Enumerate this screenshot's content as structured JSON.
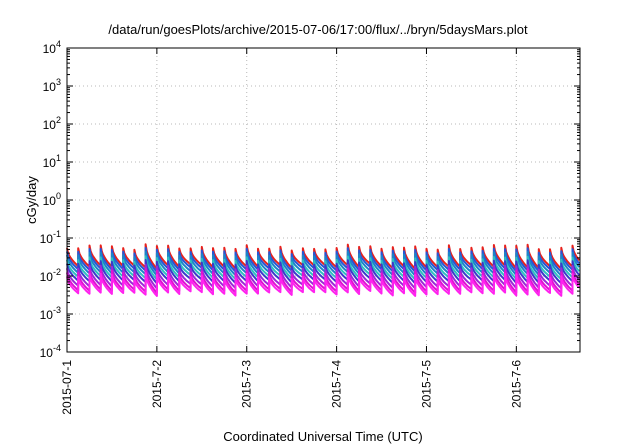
{
  "chart_data": {
    "type": "line",
    "title": "/data/run/goesPlots/archive/2015-07-06/17:00/flux/../bryn/5daysMars.plot",
    "xlabel": "Coordinated Universal Time (UTC)",
    "ylabel": "cGy/day",
    "x_range": [
      "2015-07-01T00:00",
      "2015-07-06T17:00"
    ],
    "x_tick_labels": [
      "2015-07-1",
      "2015-7-2",
      "2015-7-3",
      "2015-7-4",
      "2015-7-5",
      "2015-7-6"
    ],
    "y_scale": "log",
    "ylim": [
      0.0001,
      10000
    ],
    "y_tick_labels": [
      {
        "base": "10",
        "exp": "-4"
      },
      {
        "base": "10",
        "exp": "-3"
      },
      {
        "base": "10",
        "exp": "-2"
      },
      {
        "base": "10",
        "exp": "-1"
      },
      {
        "base": "10",
        "exp": "0"
      },
      {
        "base": "10",
        "exp": "1"
      },
      {
        "base": "10",
        "exp": "2"
      },
      {
        "base": "10",
        "exp": "3"
      },
      {
        "base": "10",
        "exp": "4"
      }
    ],
    "grid": true,
    "legend": "none",
    "sawtooth_period_hours": 3,
    "series": [
      {
        "color": "#e8211c",
        "low": 0.018,
        "high": 0.062
      },
      {
        "color": "#2757d6",
        "low": 0.015,
        "high": 0.05
      },
      {
        "color": "#1a86c8",
        "low": 0.012,
        "high": 0.04
      },
      {
        "color": "#2ec0c0",
        "low": 0.0095,
        "high": 0.03
      },
      {
        "color": "#3a3acb",
        "low": 0.0075,
        "high": 0.024
      },
      {
        "color": "#9a2ad6",
        "low": 0.0055,
        "high": 0.018
      },
      {
        "color": "#e011d2",
        "low": 0.0042,
        "high": 0.014
      },
      {
        "color": "#ff22ee",
        "low": 0.0035,
        "high": 0.011
      }
    ]
  }
}
